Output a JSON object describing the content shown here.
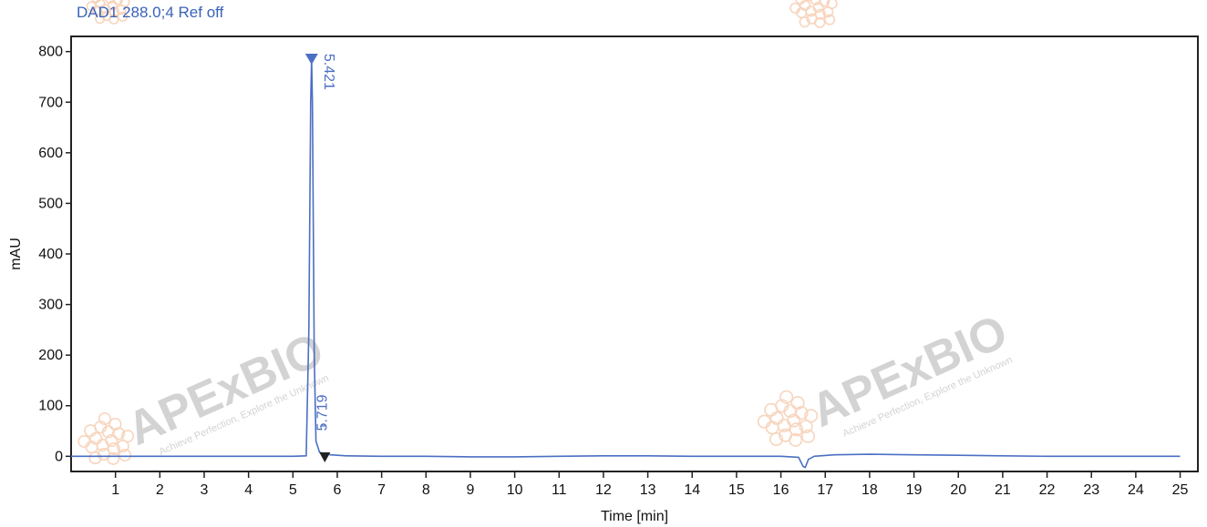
{
  "chart_data": {
    "type": "line",
    "title": "DAD1 288.0;4 Ref off",
    "xlabel": "Time [min]",
    "ylabel": "mAU",
    "xlim": [
      0,
      25.4
    ],
    "ylim": [
      -30,
      830
    ],
    "x_ticks": [
      1,
      2,
      3,
      4,
      5,
      6,
      7,
      8,
      9,
      10,
      11,
      12,
      13,
      14,
      15,
      16,
      17,
      18,
      19,
      20,
      21,
      22,
      23,
      24,
      25
    ],
    "y_ticks": [
      0,
      100,
      200,
      300,
      400,
      500,
      600,
      700,
      800
    ],
    "grid": false,
    "series": [
      {
        "color": "#4a6fc4",
        "x": [
          0,
          1.0,
          2.0,
          3.0,
          4.0,
          5.0,
          5.3,
          5.36,
          5.4,
          5.421,
          5.44,
          5.48,
          5.52,
          5.6,
          5.719,
          5.85,
          6.2,
          7.0,
          8.0,
          9.0,
          10.0,
          11.0,
          12.0,
          13.0,
          14.0,
          15.0,
          16.0,
          16.4,
          16.5,
          16.55,
          16.62,
          16.75,
          17.2,
          18.0,
          19.0,
          20.0,
          21.0,
          22.0,
          23.0,
          24.0,
          25.0
        ],
        "y": [
          0,
          0,
          0,
          0,
          0,
          0,
          1,
          250,
          700,
          785,
          700,
          200,
          30,
          8,
          5,
          3,
          1,
          0,
          0,
          -1,
          -1,
          0,
          1,
          1,
          0,
          0,
          0,
          -2,
          -20,
          -22,
          -6,
          0,
          3,
          4,
          3,
          2,
          1,
          0,
          0,
          0,
          0
        ]
      }
    ],
    "peaks": [
      {
        "label": "5.421",
        "x": 5.421,
        "y": 785
      },
      {
        "label": "5.719",
        "x": 5.719,
        "y": 5
      }
    ]
  },
  "watermark": {
    "brand": "APExBIO",
    "slogan": "Achieve Perfection, Explore the Unknown",
    "color": "#f2b38a"
  }
}
